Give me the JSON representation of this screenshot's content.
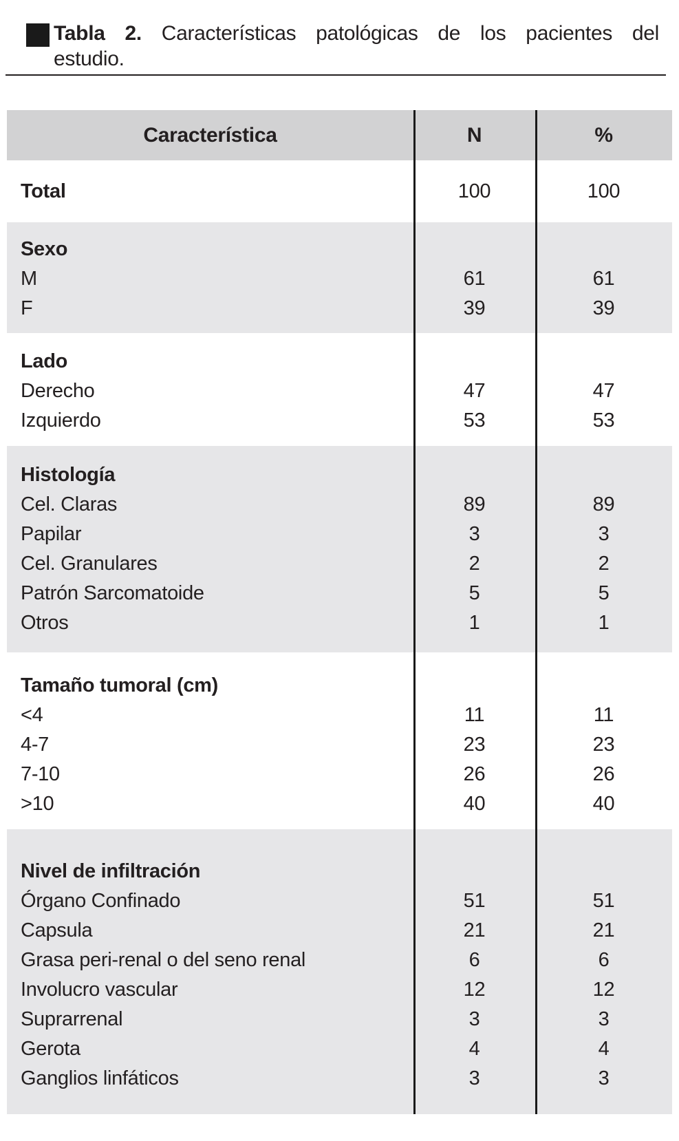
{
  "caption": {
    "label": "Tabla 2.",
    "line1": "Características patológicas de los pacientes del",
    "line2": "estudio."
  },
  "colors": {
    "header_bg": "#d2d2d3",
    "section_bg": "#e6e6e8",
    "rule": "#1a1a1a",
    "text": "#231f20"
  },
  "table": {
    "header": {
      "col1": "Característica",
      "col2": "N",
      "col3": "%"
    },
    "sections": [
      {
        "name": "total",
        "shaded": false,
        "rows": [
          {
            "label": "Total",
            "n": "100",
            "pct": "100"
          }
        ]
      },
      {
        "name": "sexo",
        "shaded": true,
        "title": "Sexo",
        "rows": [
          {
            "label": "M",
            "n": "61",
            "pct": "61"
          },
          {
            "label": "F",
            "n": "39",
            "pct": "39"
          }
        ]
      },
      {
        "name": "lado",
        "shaded": false,
        "title": "Lado",
        "rows": [
          {
            "label": "Derecho",
            "n": "47",
            "pct": "47"
          },
          {
            "label": "Izquierdo",
            "n": "53",
            "pct": "53"
          }
        ]
      },
      {
        "name": "histologia",
        "shaded": true,
        "title": "Histología",
        "rows": [
          {
            "label": "Cel. Claras",
            "n": "89",
            "pct": "89"
          },
          {
            "label": "Papilar",
            "n": "3",
            "pct": "3"
          },
          {
            "label": "Cel. Granulares",
            "n": "2",
            "pct": "2"
          },
          {
            "label": "Patrón Sarcomatoide",
            "n": "5",
            "pct": "5"
          },
          {
            "label": "Otros",
            "n": "1",
            "pct": "1"
          }
        ]
      },
      {
        "name": "tamano-tumoral",
        "shaded": false,
        "title": "Tamaño tumoral (cm)",
        "rows": [
          {
            "label": "<4",
            "n": "11",
            "pct": "11"
          },
          {
            "label": "4-7",
            "n": "23",
            "pct": "23"
          },
          {
            "label": "7-10",
            "n": "26",
            "pct": "26"
          },
          {
            "label": ">10",
            "n": "40",
            "pct": "40"
          }
        ]
      },
      {
        "name": "nivel-infiltracion",
        "shaded": true,
        "title": "Nivel de infiltración",
        "rows": [
          {
            "label": "Órgano Confinado",
            "n": "51",
            "pct": "51"
          },
          {
            "label": "Capsula",
            "n": "21",
            "pct": "21"
          },
          {
            "label": "Grasa peri-renal o del seno renal",
            "n": "6",
            "pct": "6"
          },
          {
            "label": "Involucro vascular",
            "n": "12",
            "pct": "12"
          },
          {
            "label": "Suprarrenal",
            "n": "3",
            "pct": "3"
          },
          {
            "label": "Gerota",
            "n": "4",
            "pct": "4"
          },
          {
            "label": "Ganglios linfáticos",
            "n": "3",
            "pct": "3"
          }
        ]
      }
    ]
  }
}
